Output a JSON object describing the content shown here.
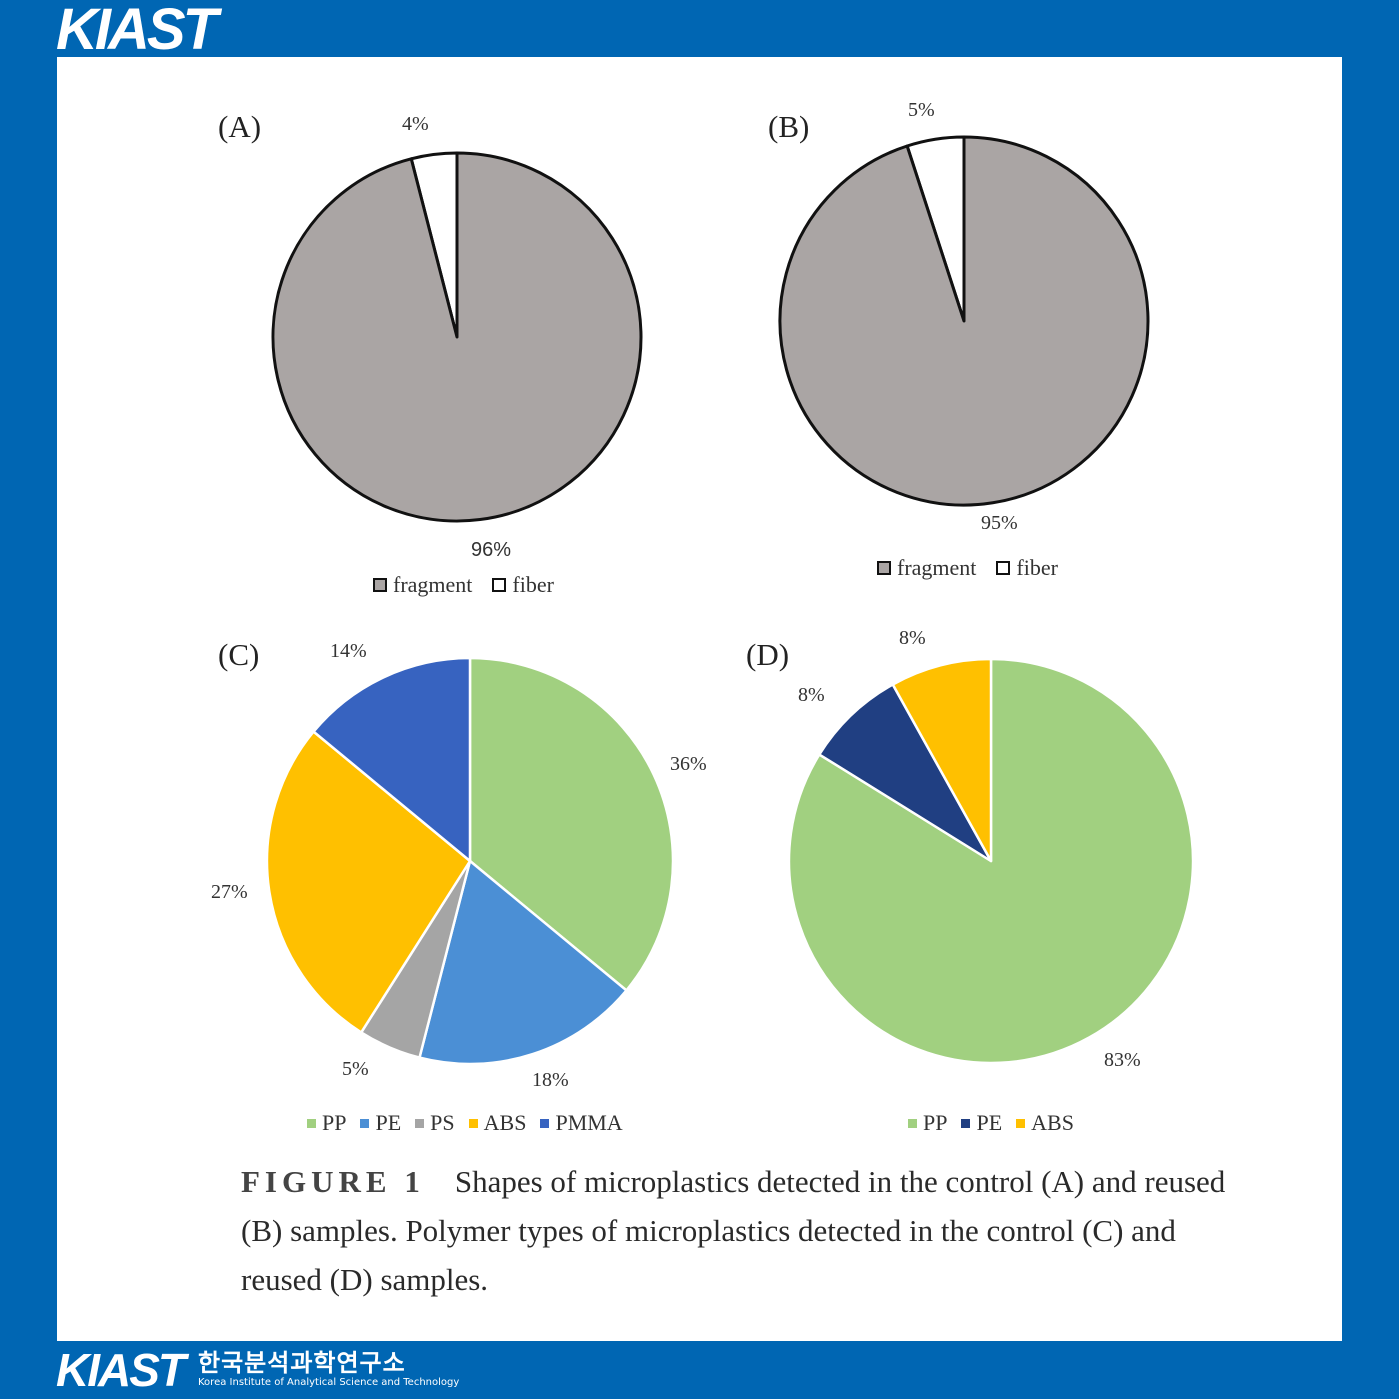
{
  "brand": {
    "logo_text": "KIAST",
    "org_korean": "한국분석과학연구소",
    "org_english": "Korea Institute of Analytical Science and Technology"
  },
  "caption": {
    "figure_label": "FIGURE 1",
    "text": "Shapes of microplastics detected in the control (A) and reused (B) samples. Polymer types of microplastics detected in the control (C) and reused (D) samples."
  },
  "chart_data": [
    {
      "type": "pie",
      "panel": "(A)",
      "categories": [
        "fragment",
        "fiber"
      ],
      "values": [
        96,
        4
      ],
      "labels": [
        "96%",
        "4%"
      ],
      "colors": [
        "#aaa5a4",
        "#ffffff"
      ],
      "legend": [
        "fragment",
        "fiber"
      ]
    },
    {
      "type": "pie",
      "panel": "(B)",
      "categories": [
        "fragment",
        "fiber"
      ],
      "values": [
        95,
        5
      ],
      "labels": [
        "95%",
        "5%"
      ],
      "colors": [
        "#aaa5a4",
        "#ffffff"
      ],
      "legend": [
        "fragment",
        "fiber"
      ]
    },
    {
      "type": "pie",
      "panel": "(C)",
      "categories": [
        "PP",
        "PE",
        "PS",
        "ABS",
        "PMMA"
      ],
      "values": [
        36,
        18,
        5,
        27,
        14
      ],
      "labels": [
        "36%",
        "18%",
        "5%",
        "27%",
        "14%"
      ],
      "colors": [
        "#a1d080",
        "#4b8fd5",
        "#a5a5a5",
        "#ffc000",
        "#3763c0"
      ],
      "legend": [
        "PP",
        "PE",
        "PS",
        "ABS",
        "PMMA"
      ]
    },
    {
      "type": "pie",
      "panel": "(D)",
      "categories": [
        "PP",
        "PE",
        "ABS"
      ],
      "values": [
        83,
        8,
        8
      ],
      "labels": [
        "83%",
        "8%",
        "8%"
      ],
      "colors": [
        "#a1d080",
        "#203f82",
        "#ffc000"
      ],
      "legend": [
        "PP",
        "PE",
        "ABS"
      ]
    }
  ]
}
